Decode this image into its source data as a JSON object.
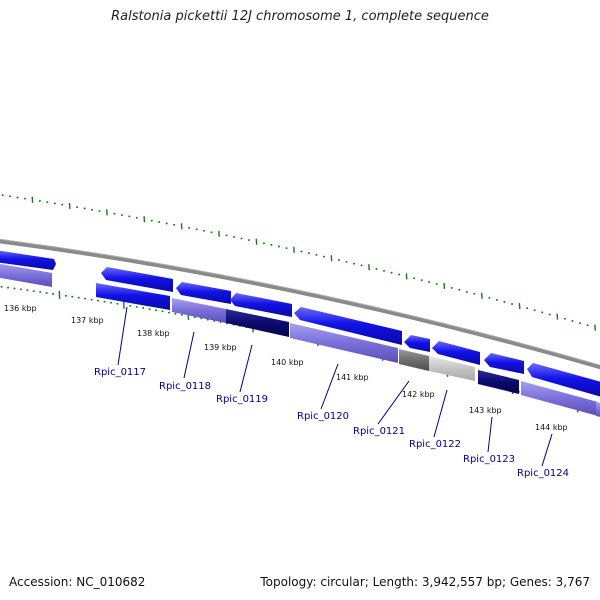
{
  "title": "Ralstonia pickettii 12J chromosome 1, complete sequence",
  "accession": "Accession: NC_010682",
  "summary": "Topology: circular; Length: 3,942,557 bp; Genes: 3,767",
  "colors": {
    "blue": "#1212e6",
    "lavender": "#7b6fd9",
    "navy": "#0a0a6e",
    "dark_gray": "#6e6e6e",
    "light_gray": "#c4c4c4",
    "backbone": "#8a8a8a",
    "tick_green": "#1a7a1a",
    "label_blue": "#00008b"
  },
  "scale": {
    "kbp_ticks": [
      {
        "kbp": 136,
        "label": "136 kbp"
      },
      {
        "kbp": 137,
        "label": "137 kbp"
      },
      {
        "kbp": 138,
        "label": "138 kbp"
      },
      {
        "kbp": 139,
        "label": "139 kbp"
      },
      {
        "kbp": 140,
        "label": "140 kbp"
      },
      {
        "kbp": 141,
        "label": "141 kbp"
      },
      {
        "kbp": 142,
        "label": "142 kbp"
      },
      {
        "kbp": 143,
        "label": "143 kbp"
      },
      {
        "kbp": 144,
        "label": "144 kbp"
      }
    ]
  },
  "genes": [
    {
      "name": "Rpic_0117"
    },
    {
      "name": "Rpic_0118"
    },
    {
      "name": "Rpic_0119"
    },
    {
      "name": "Rpic_0120"
    },
    {
      "name": "Rpic_0121"
    },
    {
      "name": "Rpic_0122"
    },
    {
      "name": "Rpic_0123"
    },
    {
      "name": "Rpic_0124"
    }
  ]
}
